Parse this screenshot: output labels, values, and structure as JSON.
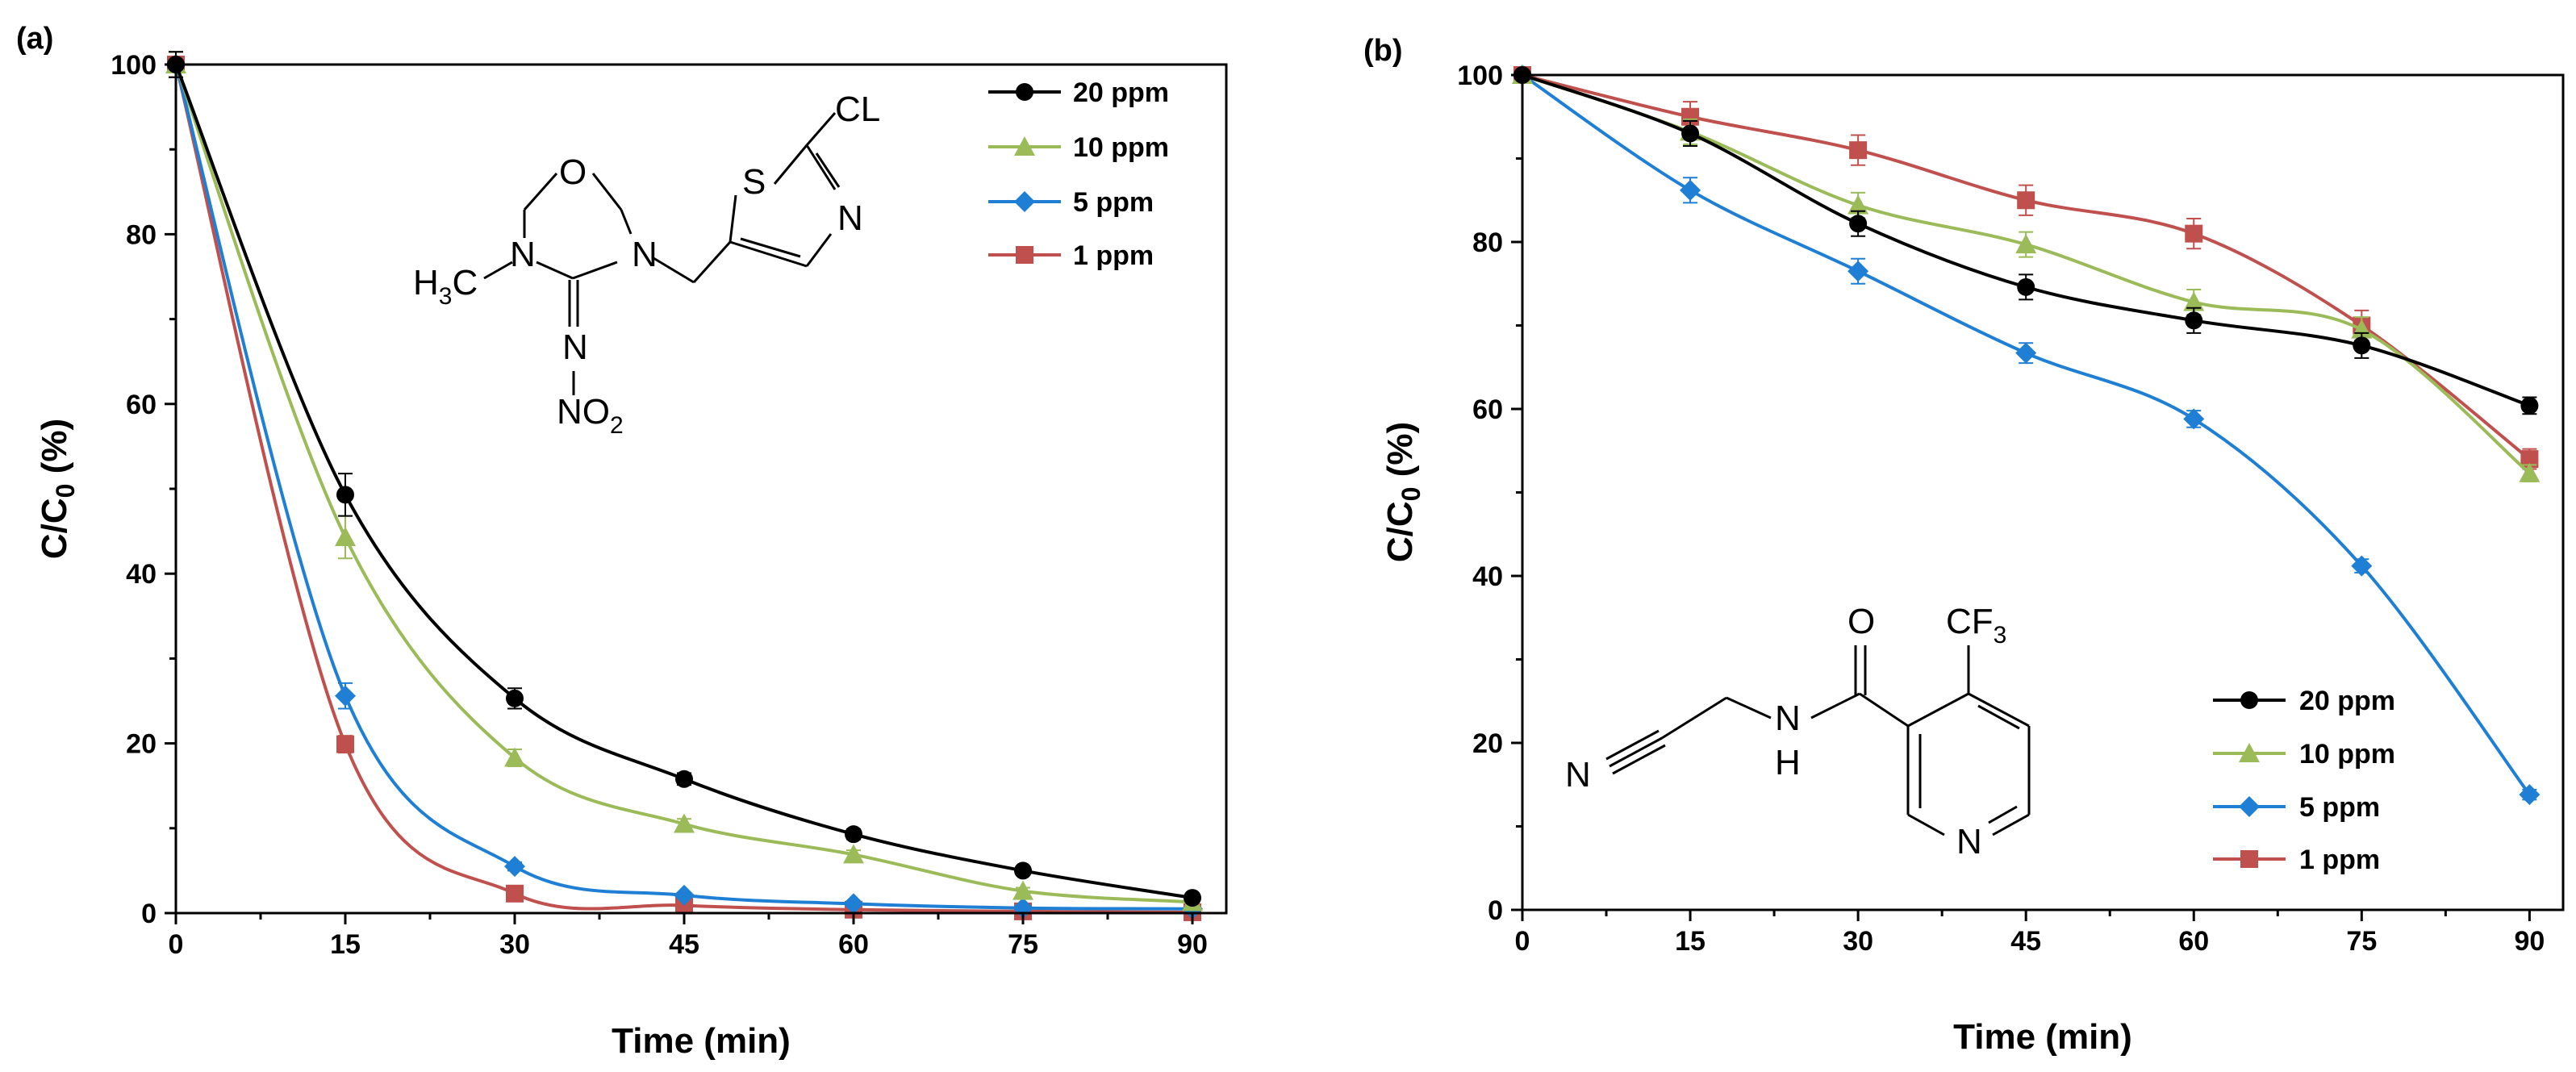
{
  "chart_data": [
    {
      "panel": "(a)",
      "type": "line",
      "xlabel": "Time (min)",
      "ylabel_main": "C/C",
      "ylabel_sub": "0",
      "ylabel_tail": " (%)",
      "xlim": [
        0,
        93
      ],
      "ylim": [
        0,
        100
      ],
      "xticks": [
        0,
        15,
        30,
        45,
        60,
        75,
        90
      ],
      "yticks": [
        0,
        20,
        40,
        60,
        80,
        100
      ],
      "x": [
        0,
        15,
        30,
        45,
        60,
        75,
        90
      ],
      "legend_position": "top-right",
      "series": [
        {
          "name": "20 ppm",
          "color": "#000000",
          "marker": "circle",
          "values": [
            100,
            49.3,
            25.3,
            15.8,
            9.3,
            5.0,
            1.8
          ],
          "errors": [
            1.5,
            2.5,
            1.2,
            0.7,
            0.6,
            0.5,
            0.4
          ]
        },
        {
          "name": "10 ppm",
          "color": "#9bbb59",
          "marker": "triangle",
          "values": [
            100,
            44.3,
            18.3,
            10.5,
            6.9,
            2.6,
            1.3
          ],
          "errors": [
            1.5,
            2.5,
            1.0,
            0.6,
            0.5,
            0.4,
            0.3
          ]
        },
        {
          "name": "5 ppm",
          "color": "#1f7fd4",
          "marker": "diamond",
          "values": [
            100,
            25.6,
            5.5,
            2.1,
            1.1,
            0.6,
            0.5
          ],
          "errors": [
            1.5,
            1.5,
            0.5,
            0.3,
            0.3,
            0.2,
            0.2
          ]
        },
        {
          "name": "1 ppm",
          "color": "#c0504d",
          "marker": "square",
          "values": [
            100,
            19.9,
            2.3,
            0.9,
            0.4,
            0.2,
            0.1
          ],
          "errors": [
            1.5,
            1.0,
            0.4,
            0.2,
            0.2,
            0.1,
            0.1
          ]
        }
      ]
    },
    {
      "panel": "(b)",
      "type": "line",
      "xlabel": "Time (min)",
      "ylabel_main": "C/C",
      "ylabel_sub": "0",
      "ylabel_tail": " (%)",
      "xlim": [
        0,
        93
      ],
      "ylim": [
        0,
        100
      ],
      "xticks": [
        0,
        15,
        30,
        45,
        60,
        75,
        90
      ],
      "yticks": [
        0,
        20,
        40,
        60,
        80,
        100
      ],
      "x": [
        0,
        15,
        30,
        45,
        60,
        75,
        90
      ],
      "legend_position": "bottom-right",
      "series": [
        {
          "name": "20 ppm",
          "color": "#000000",
          "marker": "circle",
          "values": [
            100,
            93.0,
            82.2,
            74.6,
            70.6,
            67.6,
            60.4
          ],
          "errors": [
            0.5,
            1.5,
            1.5,
            1.5,
            1.5,
            1.5,
            1.0
          ]
        },
        {
          "name": "10 ppm",
          "color": "#9bbb59",
          "marker": "triangle",
          "values": [
            100,
            93.2,
            84.4,
            79.7,
            72.8,
            69.5,
            52.3
          ],
          "errors": [
            0.5,
            1.5,
            1.5,
            1.5,
            1.5,
            1.5,
            1.0
          ]
        },
        {
          "name": "5 ppm",
          "color": "#1f7fd4",
          "marker": "diamond",
          "values": [
            100,
            86.2,
            76.5,
            66.7,
            58.8,
            41.2,
            13.8
          ],
          "errors": [
            0.5,
            1.5,
            1.5,
            1.2,
            1.0,
            0.8,
            0.6
          ]
        },
        {
          "name": "1 ppm",
          "color": "#c0504d",
          "marker": "square",
          "values": [
            100,
            95.0,
            91.0,
            85.0,
            81.0,
            70.0,
            54.0
          ],
          "errors": [
            0.5,
            1.8,
            1.8,
            1.8,
            1.8,
            1.8,
            1.2
          ]
        }
      ]
    }
  ],
  "structure_a": {
    "atom_o": "O",
    "atom_s": "S",
    "atom_cl": "CL",
    "atom_n_left": "N",
    "atom_n_right": "N",
    "atom_n_thiazole": "N",
    "atom_n_imine": "N",
    "methyl_main": "H",
    "methyl_sub": "3",
    "methyl_tail": "C",
    "nitro_main": "NO",
    "nitro_sub": "2"
  },
  "structure_b": {
    "atom_o": "O",
    "cf3_main": "CF",
    "cf3_sub": "3",
    "nitrile_n": "N",
    "amide_n": "N",
    "amide_h": "H",
    "pyridine_n": "N"
  }
}
